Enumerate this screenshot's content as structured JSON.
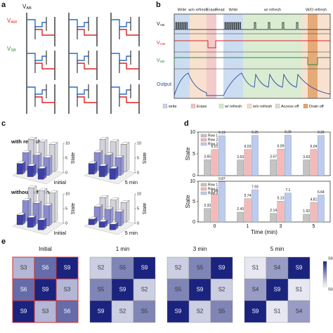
{
  "panel_letters": [
    "a",
    "b",
    "c",
    "d",
    "e"
  ],
  "circuit": {
    "v_ab": {
      "text": "V",
      "sub": "AB"
    },
    "v_aw": {
      "text": "V",
      "sub": "AW"
    },
    "v_sb": {
      "text": "V",
      "sub": "SB"
    }
  },
  "timing": {
    "phases": [
      "Write",
      "w/o refresh",
      "Erase",
      "Read",
      "Write",
      "w/ refresh",
      "W/O refresh"
    ],
    "rows": [
      {
        "text": "V",
        "sub": "AB"
      },
      {
        "text": "V",
        "sub": "AW"
      },
      {
        "text": "V",
        "sub": "SB"
      },
      {
        "text": "Output",
        "sub": ""
      }
    ],
    "legend": [
      {
        "name": "write",
        "color": "#c3d7f0"
      },
      {
        "name": "Erase",
        "color": "#f2c2c2"
      },
      {
        "name": "w/ refresh",
        "color": "#d3eacb"
      },
      {
        "name": "w/o refresh",
        "color": "#f7dcc6"
      },
      {
        "name": "Access off",
        "color": "#dcdcdc"
      },
      {
        "name": "Drain off",
        "color": "#e3a06a"
      }
    ]
  },
  "chart_data": [
    {
      "type": "bar3d",
      "title": "with refresh",
      "xlabel": "Initial",
      "zlabel": "State",
      "zlim": [
        0,
        10
      ],
      "zticks": [
        0,
        5,
        10
      ],
      "colors": [
        "#3c3fa8",
        "#8a8bd0",
        "#d2d2da"
      ],
      "values": [
        [
          3.65,
          3.65,
          3.65
        ],
        [
          6.01,
          6.01,
          6.01
        ],
        [
          9.19,
          9.19,
          9.19
        ]
      ]
    },
    {
      "type": "bar3d",
      "xlabel": "5 min",
      "zlabel": "State",
      "zlim": [
        0,
        10
      ],
      "zticks": [
        0,
        5,
        10
      ],
      "colors": [
        "#3c3fa8",
        "#8a8bd0",
        "#d2d2da"
      ],
      "values": [
        [
          3.63,
          3.63,
          3.63
        ],
        [
          6.04,
          6.04,
          6.04
        ],
        [
          9.22,
          9.22,
          9.22
        ]
      ]
    },
    {
      "type": "bar3d",
      "title": "without refresh",
      "xlabel": "Initial",
      "zlabel": "State",
      "zlim": [
        0,
        10
      ],
      "zticks": [
        0,
        5,
        10
      ],
      "colors": [
        "#3c3fa8",
        "#8a8bd0",
        "#d2d2da"
      ],
      "values": [
        [
          3.33,
          3.33,
          3.33
        ],
        [
          6.89,
          6.89,
          6.89
        ],
        [
          9.87,
          9.87,
          9.87
        ]
      ]
    },
    {
      "type": "bar3d",
      "xlabel": "5 min",
      "zlabel": "State",
      "zlim": [
        0,
        10
      ],
      "zticks": [
        0,
        5,
        10
      ],
      "colors": [
        "#3c3fa8",
        "#8a8bd0",
        "#d2d2da"
      ],
      "values": [
        [
          1.92,
          1.92,
          1.92
        ],
        [
          4.81,
          4.81,
          4.81
        ],
        [
          6.64,
          6.64,
          6.64
        ]
      ]
    },
    {
      "type": "bar",
      "ylabel": "State",
      "ylim": [
        0,
        10
      ],
      "yticks": [
        0,
        5,
        10
      ],
      "series": [
        {
          "name": "Row 1",
          "color": "#c4c4c4",
          "values": [
            3.65,
            3.63,
            3.67,
            3.63
          ]
        },
        {
          "name": "Row 2",
          "color": "#f4b9b9",
          "values": [
            6.01,
            6.03,
            6.09,
            6.04
          ]
        },
        {
          "name": "Row 3",
          "color": "#bccbef",
          "values": [
            9.19,
            9.25,
            9.29,
            9.22
          ]
        }
      ]
    },
    {
      "type": "bar",
      "ylabel": "State",
      "xlabel": "Time (min)",
      "categories": [
        "0",
        "1",
        "3",
        "5"
      ],
      "ylim": [
        0,
        10
      ],
      "yticks": [
        0,
        5,
        10
      ],
      "series": [
        {
          "name": "Row 1",
          "color": "#c4c4c4",
          "values": [
            3.33,
            2.43,
            2.14,
            1.92
          ]
        },
        {
          "name": "Row 2",
          "color": "#f4b9b9",
          "values": [
            6.89,
            5.74,
            5.13,
            4.81
          ]
        },
        {
          "name": "Row 3",
          "color": "#bccbef",
          "values": [
            9.87,
            7.93,
            7.1,
            6.64
          ]
        }
      ]
    }
  ],
  "heatmaps": [
    {
      "title": "Initial",
      "cells": [
        [
          "S3",
          "S6",
          "S9"
        ],
        [
          "S6",
          "S9",
          "S3"
        ],
        [
          "S9",
          "S3",
          "S6"
        ]
      ]
    },
    {
      "title": "1 min",
      "cells": [
        [
          "S2",
          "S5",
          "S9"
        ],
        [
          "S5",
          "S9",
          "S2"
        ],
        [
          "S9",
          "S2",
          "S5"
        ]
      ]
    },
    {
      "title": "3 min",
      "cells": [
        [
          "S2",
          "S5",
          "S9"
        ],
        [
          "S5",
          "S9",
          "S2"
        ],
        [
          "S9",
          "S2",
          "S5"
        ]
      ]
    },
    {
      "title": "5 min",
      "cells": [
        [
          "S1",
          "S4",
          "S9"
        ],
        [
          "S4",
          "S9",
          "S1"
        ],
        [
          "S9",
          "S1",
          "S4"
        ]
      ]
    }
  ],
  "colorbar": {
    "top": "S9",
    "bottom": "S0"
  }
}
